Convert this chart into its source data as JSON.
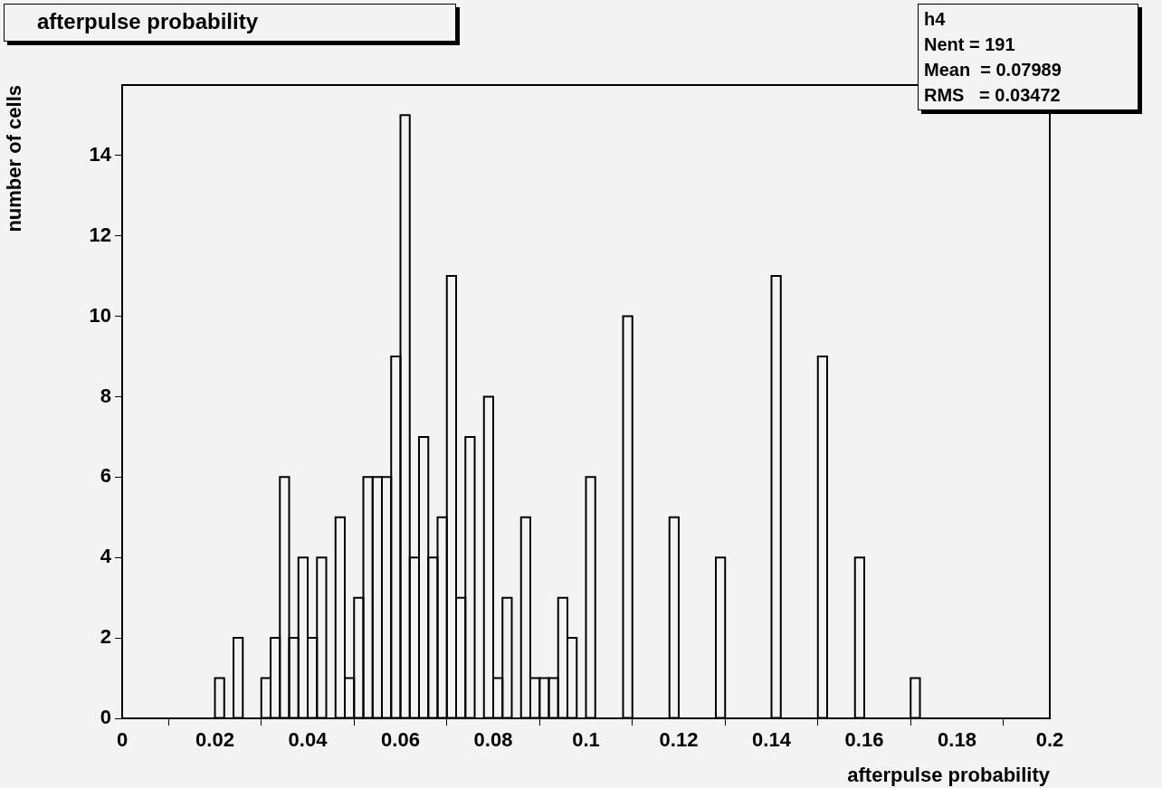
{
  "chart_data": {
    "type": "histogram",
    "title": "afterpulse probability",
    "xlabel": "afterpulse probability",
    "ylabel": "number of cells",
    "annotations": [
      "h4",
      "Nent = 191",
      "Mean  = 0.07989",
      "RMS   = 0.03472"
    ],
    "bins": [
      0,
      0.002,
      0.004,
      0.006,
      0.008,
      0.01,
      0.012,
      0.014,
      0.016,
      0.018,
      0.02,
      0.022,
      0.024,
      0.026,
      0.028,
      0.03,
      0.032,
      0.034,
      0.036,
      0.038,
      0.04,
      0.042,
      0.044,
      0.046,
      0.048,
      0.05,
      0.052,
      0.054,
      0.056,
      0.058,
      0.06,
      0.062,
      0.064,
      0.066,
      0.068,
      0.07,
      0.072,
      0.074,
      0.076,
      0.078,
      0.08,
      0.082,
      0.084,
      0.086,
      0.088,
      0.09,
      0.092,
      0.094,
      0.096,
      0.098,
      0.1,
      0.102,
      0.104,
      0.106,
      0.108,
      0.11,
      0.112,
      0.114,
      0.116,
      0.118,
      0.12,
      0.122,
      0.124,
      0.126,
      0.128,
      0.13,
      0.132,
      0.134,
      0.136,
      0.138,
      0.14,
      0.142,
      0.144,
      0.146,
      0.148,
      0.15,
      0.152,
      0.154,
      0.156,
      0.158,
      0.16,
      0.162,
      0.164,
      0.166,
      0.168,
      0.17,
      0.172,
      0.174,
      0.176,
      0.178,
      0.18,
      0.182,
      0.184,
      0.186,
      0.188,
      0.19,
      0.192,
      0.194,
      0.196,
      0.198,
      0.2
    ],
    "values": [
      0,
      0,
      0,
      0,
      0,
      0,
      0,
      0,
      0,
      0,
      1,
      0,
      2,
      0,
      0,
      1,
      2,
      6,
      2,
      4,
      2,
      4,
      0,
      5,
      1,
      3,
      6,
      6,
      6,
      9,
      15,
      4,
      7,
      4,
      5,
      11,
      3,
      7,
      0,
      8,
      1,
      3,
      0,
      5,
      1,
      1,
      1,
      3,
      2,
      0,
      6,
      0,
      0,
      0,
      10,
      0,
      0,
      0,
      0,
      5,
      0,
      0,
      0,
      0,
      4,
      0,
      0,
      0,
      0,
      0,
      11,
      0,
      0,
      0,
      0,
      9,
      0,
      0,
      0,
      4,
      0,
      0,
      0,
      0,
      0,
      1,
      0,
      0,
      0,
      0,
      0,
      0,
      0,
      0,
      0,
      0,
      0,
      0,
      0,
      0
    ],
    "color": "#000000",
    "xlim": [
      0,
      0.2
    ],
    "xticks": [
      0,
      0.02,
      0.04,
      0.06,
      0.08,
      0.1,
      0.12,
      0.14,
      0.16,
      0.18,
      0.2
    ],
    "ylim": [
      0,
      15.75
    ],
    "yticks": [
      0,
      2,
      4,
      6,
      8,
      10,
      12,
      14
    ],
    "grid": false,
    "legend": false
  }
}
